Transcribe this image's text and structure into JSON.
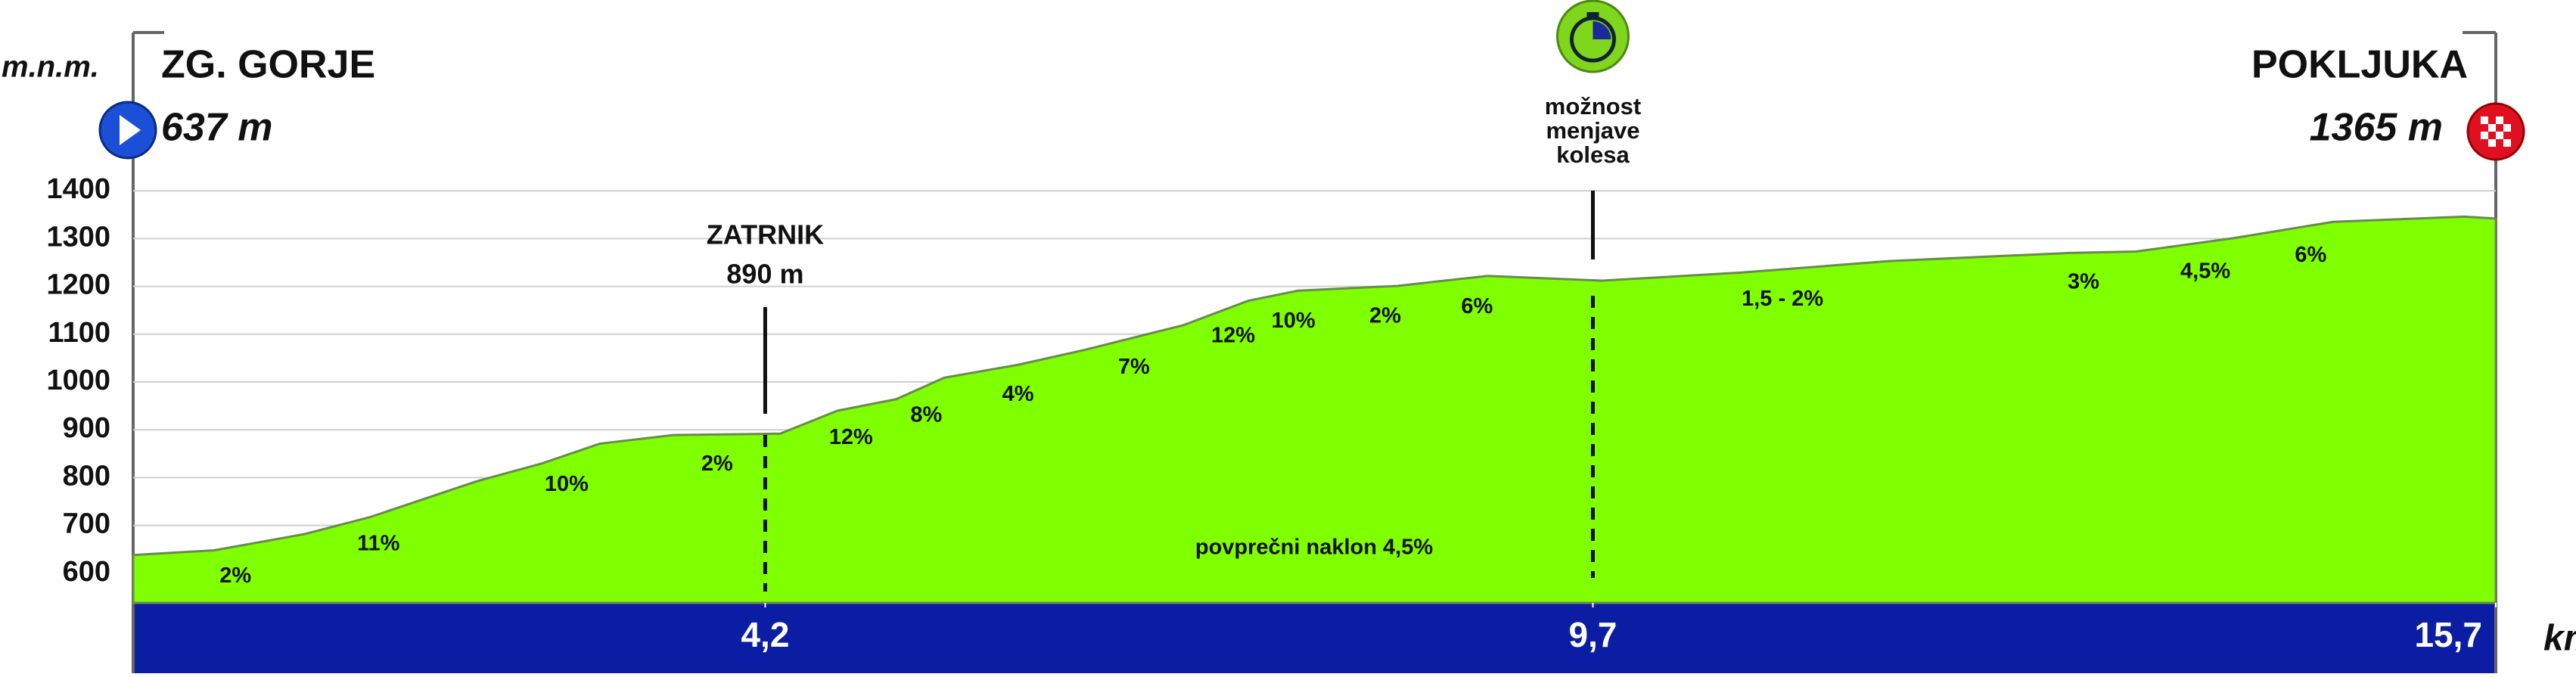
{
  "chart_data": {
    "type": "area",
    "y_label": "m.n.m.",
    "x_label": "km",
    "start": {
      "name": "ZG. GORJE",
      "elevation": "637 m"
    },
    "finish": {
      "name": "POKLJUKA",
      "elevation": "1365 m"
    },
    "x": [
      0,
      0.54,
      1.14,
      1.57,
      2.28,
      2.72,
      3.1,
      3.59,
      4.3,
      4.68,
      5.07,
      5.39,
      5.88,
      6.32,
      6.98,
      7.41,
      7.74,
      8.4,
      9.0,
      9.76,
      10.69,
      11.67,
      12.87,
      13.31,
      13.96,
      14.62,
      15.49,
      15.7
    ],
    "values": [
      638,
      648,
      682,
      717,
      792,
      830,
      871,
      889,
      892,
      940,
      964,
      1009,
      1036,
      1067,
      1119,
      1170,
      1191,
      1201,
      1222,
      1212,
      1229,
      1253,
      1270,
      1273,
      1301,
      1335,
      1346,
      1342
    ],
    "color": "#80ff00",
    "xlim": [
      0,
      15.7
    ],
    "xticks": [
      {
        "value": 4.2,
        "label": "4,2"
      },
      {
        "value": 9.7,
        "label": "9,7"
      },
      {
        "value": 15.7,
        "label": "15,7"
      }
    ],
    "ylim": [
      538,
      1731
    ],
    "yticks": [
      600,
      700,
      800,
      900,
      1000,
      1100,
      1200,
      1300,
      1400
    ],
    "grid": true,
    "gradients": [
      {
        "label": "2%",
        "x": 0.68
      },
      {
        "label": "11%",
        "x": 1.63
      },
      {
        "label": "10%",
        "x": 2.88
      },
      {
        "label": "2%",
        "x": 3.88
      },
      {
        "label": "12%",
        "x": 4.77
      },
      {
        "label": "8%",
        "x": 5.27
      },
      {
        "label": "4%",
        "x": 5.88
      },
      {
        "label": "7%",
        "x": 6.65
      },
      {
        "label": "12%",
        "x": 7.31
      },
      {
        "label": "10%",
        "x": 7.71
      },
      {
        "label": "2%",
        "x": 8.32
      },
      {
        "label": "6%",
        "x": 8.93
      },
      {
        "label": "1,5 - 2%",
        "x": 10.96
      },
      {
        "label": "3%",
        "x": 12.96
      },
      {
        "label": "4,5%",
        "x": 13.77
      },
      {
        "label": "6%",
        "x": 14.47
      }
    ],
    "climb": {
      "name": "ZATRNIK",
      "elevation": "890 m",
      "x": 4.2
    },
    "bike_change": {
      "lines": [
        "možnost",
        "menjave",
        "kolesa"
      ],
      "x": 9.7
    },
    "average_gradient": "povprečni naklon 4,5%"
  }
}
